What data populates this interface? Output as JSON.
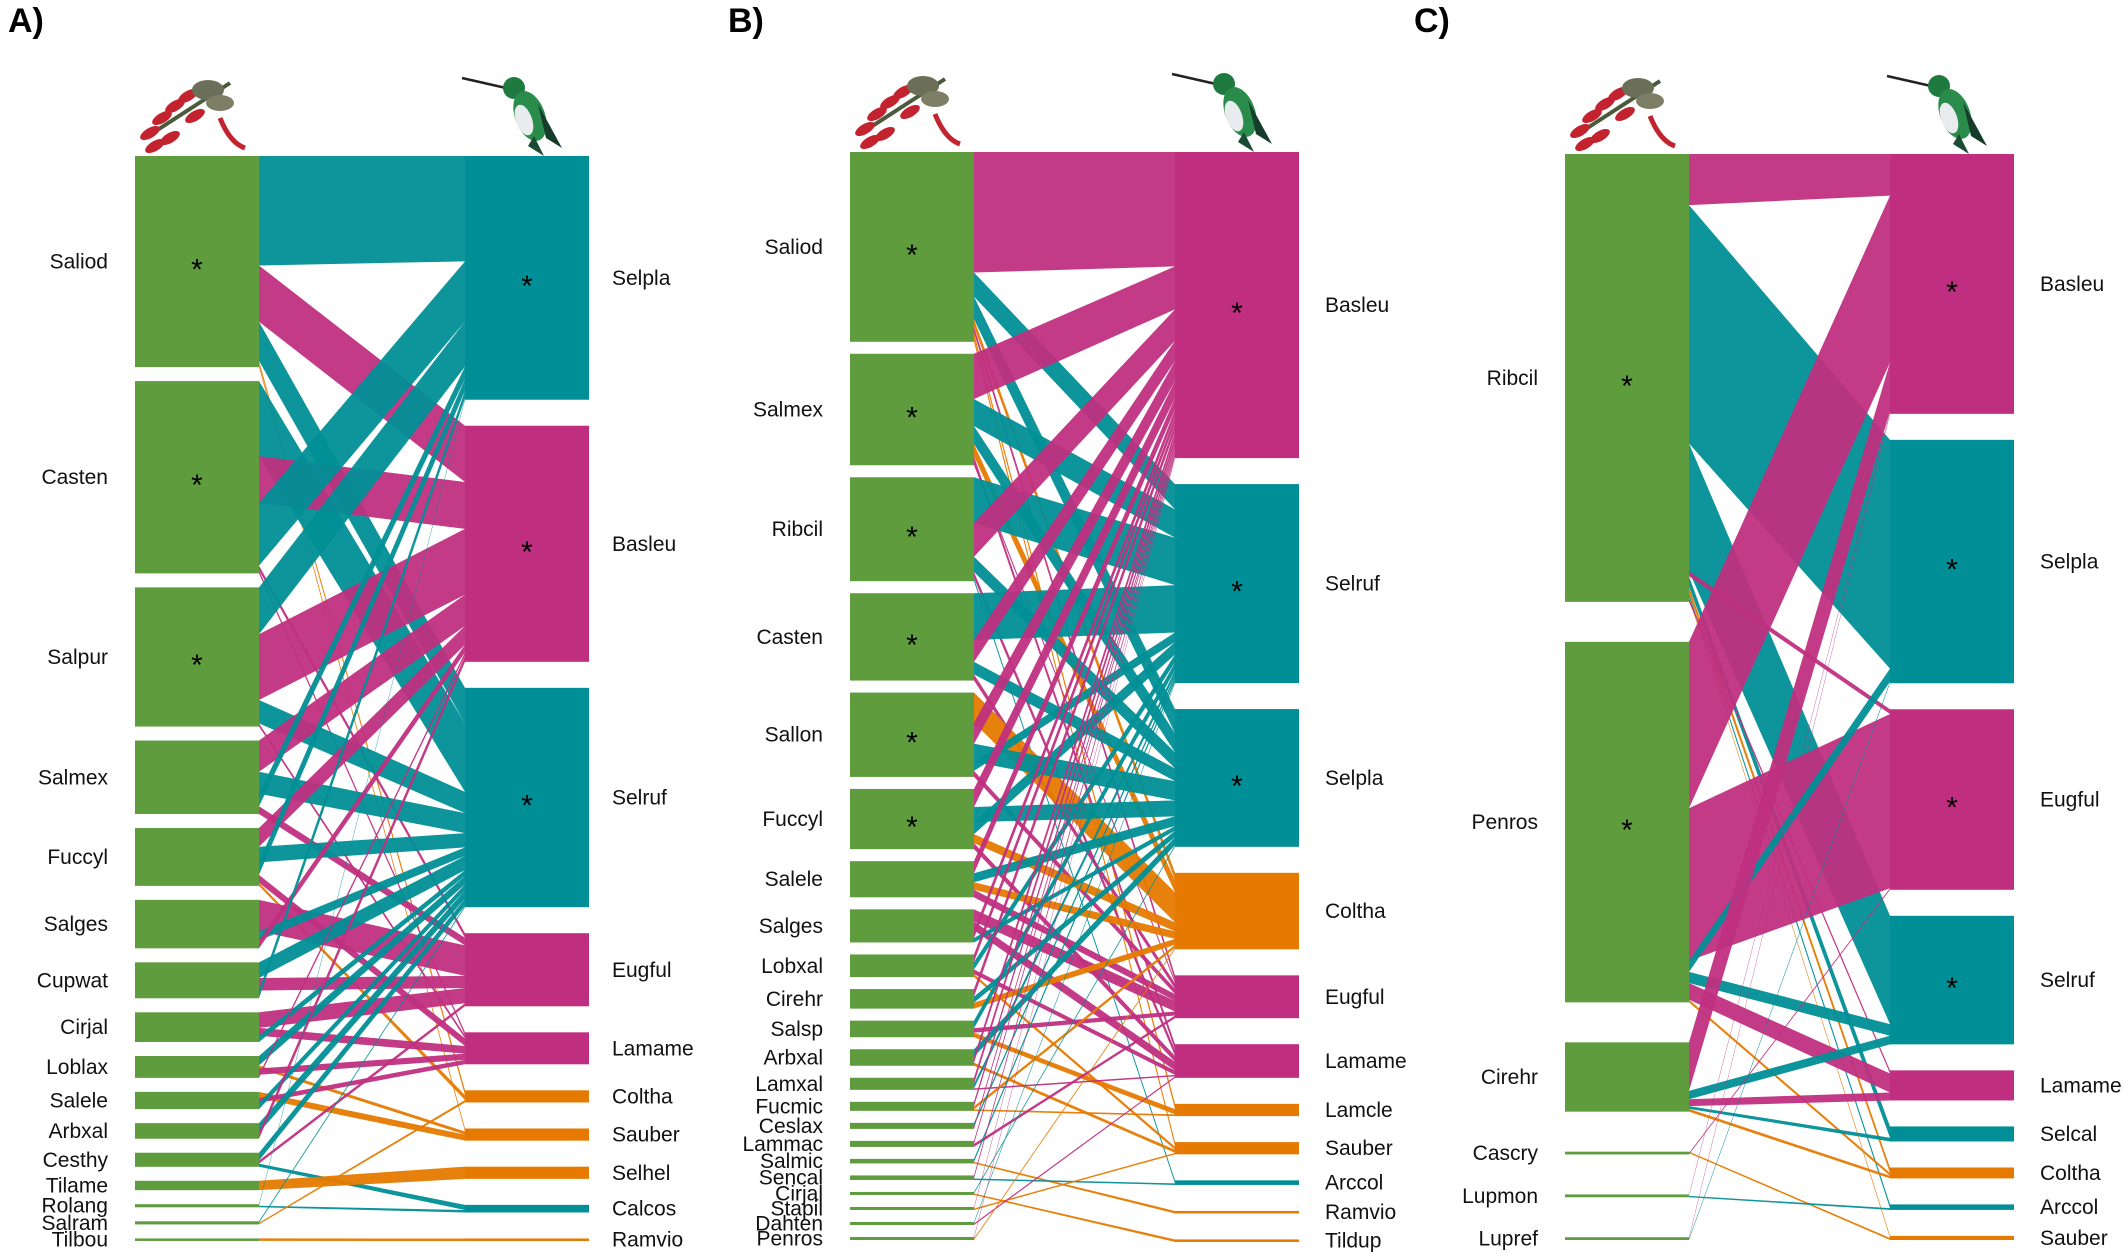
{
  "colors": {
    "plant": "#5f9c3d",
    "teal": "#008f96",
    "magenta": "#c02f7f",
    "orange": "#e67a00"
  },
  "icons": {
    "plant": "flower-icon",
    "bird": "hummingbird-icon"
  },
  "chart_data": [
    {
      "type": "bipartite",
      "panel": "A)",
      "plants": [
        {
          "name": "Saliod",
          "w": 135,
          "star": true
        },
        {
          "name": "Casten",
          "w": 123,
          "star": true
        },
        {
          "name": "Salpur",
          "w": 89,
          "star": true
        },
        {
          "name": "Salmex",
          "w": 47,
          "star": false
        },
        {
          "name": "Fuccyl",
          "w": 37,
          "star": false
        },
        {
          "name": "Salges",
          "w": 31,
          "star": false
        },
        {
          "name": "Cupwat",
          "w": 23,
          "star": false
        },
        {
          "name": "Cirjal",
          "w": 19,
          "star": false
        },
        {
          "name": "Loblax",
          "w": 14,
          "star": false
        },
        {
          "name": "Salele",
          "w": 11,
          "star": false
        },
        {
          "name": "Arbxal",
          "w": 10,
          "star": false
        },
        {
          "name": "Cesthy",
          "w": 9,
          "star": false
        },
        {
          "name": "Tilame",
          "w": 6,
          "star": false
        },
        {
          "name": "Rolang",
          "w": 2,
          "star": false
        },
        {
          "name": "Salram",
          "w": 2,
          "star": false
        },
        {
          "name": "Tilbou",
          "w": 1,
          "star": false
        }
      ],
      "birds": [
        {
          "name": "Selpla",
          "w": 160,
          "star": true,
          "color": "teal"
        },
        {
          "name": "Basleu",
          "w": 155,
          "star": true,
          "color": "magenta"
        },
        {
          "name": "Selruf",
          "w": 144,
          "star": true,
          "color": "teal"
        },
        {
          "name": "Eugful",
          "w": 48,
          "star": false,
          "color": "magenta"
        },
        {
          "name": "Lamame",
          "w": 21,
          "star": false,
          "color": "magenta"
        },
        {
          "name": "Coltha",
          "w": 8,
          "star": false,
          "color": "orange"
        },
        {
          "name": "Sauber",
          "w": 8,
          "star": false,
          "color": "orange"
        },
        {
          "name": "Selhel",
          "w": 8,
          "star": false,
          "color": "orange"
        },
        {
          "name": "Calcos",
          "w": 5,
          "star": false,
          "color": "teal"
        },
        {
          "name": "Ramvio",
          "w": 1,
          "star": false,
          "color": "orange"
        }
      ],
      "links": [
        [
          "Saliod",
          "Selpla",
          70
        ],
        [
          "Saliod",
          "Basleu",
          36
        ],
        [
          "Saliod",
          "Selruf",
          25
        ],
        [
          "Saliod",
          "Coltha",
          2
        ],
        [
          "Saliod",
          "Sauber",
          2
        ],
        [
          "Casten",
          "Selruf",
          48
        ],
        [
          "Casten",
          "Basleu",
          30
        ],
        [
          "Casten",
          "Selpla",
          40
        ],
        [
          "Casten",
          "Eugful",
          3
        ],
        [
          "Casten",
          "Lamame",
          2
        ],
        [
          "Salpur",
          "Selpla",
          30
        ],
        [
          "Salpur",
          "Basleu",
          42
        ],
        [
          "Salpur",
          "Selruf",
          15
        ],
        [
          "Salpur",
          "Lamame",
          2
        ],
        [
          "Salmex",
          "Basleu",
          20
        ],
        [
          "Salmex",
          "Selruf",
          14
        ],
        [
          "Salmex",
          "Selpla",
          8
        ],
        [
          "Salmex",
          "Eugful",
          5
        ],
        [
          "Fuccyl",
          "Basleu",
          12
        ],
        [
          "Fuccyl",
          "Selruf",
          10
        ],
        [
          "Fuccyl",
          "Selpla",
          8
        ],
        [
          "Fuccyl",
          "Lamame",
          5
        ],
        [
          "Fuccyl",
          "Coltha",
          2
        ],
        [
          "Salges",
          "Eugful",
          20
        ],
        [
          "Salges",
          "Selruf",
          6
        ],
        [
          "Salges",
          "Basleu",
          5
        ],
        [
          "Cupwat",
          "Selruf",
          10
        ],
        [
          "Cupwat",
          "Eugful",
          8
        ],
        [
          "Cupwat",
          "Selpla",
          5
        ],
        [
          "Cirjal",
          "Eugful",
          10
        ],
        [
          "Cirjal",
          "Lamame",
          5
        ],
        [
          "Cirjal",
          "Selruf",
          4
        ],
        [
          "Loblax",
          "Selruf",
          6
        ],
        [
          "Loblax",
          "Sauber",
          2
        ],
        [
          "Loblax",
          "Lamame",
          4
        ],
        [
          "Loblax",
          "Basleu",
          2
        ],
        [
          "Salele",
          "Sauber",
          4
        ],
        [
          "Salele",
          "Lamame",
          3
        ],
        [
          "Salele",
          "Selruf",
          4
        ],
        [
          "Arbxal",
          "Selruf",
          6
        ],
        [
          "Arbxal",
          "Basleu",
          4
        ],
        [
          "Cesthy",
          "Selruf",
          5
        ],
        [
          "Cesthy",
          "Eugful",
          2
        ],
        [
          "Cesthy",
          "Calcos",
          2
        ],
        [
          "Tilame",
          "Selhel",
          6
        ],
        [
          "Rolang",
          "Selpla",
          1
        ],
        [
          "Rolang",
          "Calcos",
          1
        ],
        [
          "Salram",
          "Selruf",
          1
        ],
        [
          "Salram",
          "Coltha",
          1
        ],
        [
          "Tilbou",
          "Ramvio",
          1
        ]
      ]
    },
    {
      "type": "bipartite",
      "panel": "B)",
      "plants": [
        {
          "name": "Saliod",
          "w": 126,
          "star": true
        },
        {
          "name": "Salmex",
          "w": 74,
          "star": true
        },
        {
          "name": "Ribcil",
          "w": 69,
          "star": true
        },
        {
          "name": "Casten",
          "w": 58,
          "star": true
        },
        {
          "name": "Sallon",
          "w": 56,
          "star": true
        },
        {
          "name": "Fuccyl",
          "w": 40,
          "star": true
        },
        {
          "name": "Salele",
          "w": 24,
          "star": false
        },
        {
          "name": "Salges",
          "w": 22,
          "star": false
        },
        {
          "name": "Lobxal",
          "w": 15,
          "star": false
        },
        {
          "name": "Cirehr",
          "w": 13,
          "star": false
        },
        {
          "name": "Salsp",
          "w": 11,
          "star": false
        },
        {
          "name": "Arbxal",
          "w": 11,
          "star": false
        },
        {
          "name": "Lamxal",
          "w": 8,
          "star": false
        },
        {
          "name": "Fucmic",
          "w": 6,
          "star": false
        },
        {
          "name": "Ceslax",
          "w": 4,
          "star": false
        },
        {
          "name": "Lammac",
          "w": 4,
          "star": false
        },
        {
          "name": "Salmic",
          "w": 3,
          "star": false
        },
        {
          "name": "Sencal",
          "w": 3,
          "star": false
        },
        {
          "name": "Cirjal",
          "w": 2,
          "star": false
        },
        {
          "name": "Stapil",
          "w": 2,
          "star": false
        },
        {
          "name": "Dahten",
          "w": 2,
          "star": false
        },
        {
          "name": "Penros",
          "w": 2,
          "star": false
        }
      ],
      "birds": [
        {
          "name": "Basleu",
          "w": 200,
          "star": true,
          "color": "magenta"
        },
        {
          "name": "Selruf",
          "w": 130,
          "star": true,
          "color": "teal"
        },
        {
          "name": "Selpla",
          "w": 90,
          "star": true,
          "color": "teal"
        },
        {
          "name": "Coltha",
          "w": 50,
          "star": false,
          "color": "orange"
        },
        {
          "name": "Eugful",
          "w": 28,
          "star": false,
          "color": "magenta"
        },
        {
          "name": "Lamame",
          "w": 22,
          "star": false,
          "color": "magenta"
        },
        {
          "name": "Lamcle",
          "w": 8,
          "star": false,
          "color": "orange"
        },
        {
          "name": "Sauber",
          "w": 8,
          "star": false,
          "color": "orange"
        },
        {
          "name": "Arccol",
          "w": 3,
          "star": false,
          "color": "teal"
        },
        {
          "name": "Ramvio",
          "w": 1,
          "star": false,
          "color": "orange"
        },
        {
          "name": "Tildup",
          "w": 1,
          "star": false,
          "color": "orange"
        }
      ],
      "links": [
        [
          "Saliod",
          "Basleu",
          80
        ],
        [
          "Saliod",
          "Selruf",
          16
        ],
        [
          "Saliod",
          "Selpla",
          15
        ],
        [
          "Saliod",
          "Coltha",
          5
        ],
        [
          "Saliod",
          "Eugful",
          4
        ],
        [
          "Saliod",
          "Lamcle",
          3
        ],
        [
          "Saliod",
          "Sauber",
          3
        ],
        [
          "Salmex",
          "Basleu",
          30
        ],
        [
          "Salmex",
          "Selruf",
          18
        ],
        [
          "Salmex",
          "Selpla",
          12
        ],
        [
          "Salmex",
          "Coltha",
          8
        ],
        [
          "Salmex",
          "Lamame",
          4
        ],
        [
          "Salmex",
          "Eugful",
          2
        ],
        [
          "Ribcil",
          "Selruf",
          30
        ],
        [
          "Ribcil",
          "Basleu",
          22
        ],
        [
          "Ribcil",
          "Selpla",
          10
        ],
        [
          "Ribcil",
          "Lamame",
          4
        ],
        [
          "Ribcil",
          "Arccol",
          2
        ],
        [
          "Casten",
          "Selruf",
          30
        ],
        [
          "Casten",
          "Basleu",
          14
        ],
        [
          "Casten",
          "Selpla",
          8
        ],
        [
          "Casten",
          "Eugful",
          4
        ],
        [
          "Sallon",
          "Coltha",
          20
        ],
        [
          "Sallon",
          "Basleu",
          14
        ],
        [
          "Sallon",
          "Selpla",
          12
        ],
        [
          "Sallon",
          "Selruf",
          6
        ],
        [
          "Sallon",
          "Eugful",
          4
        ],
        [
          "Fuccyl",
          "Basleu",
          12
        ],
        [
          "Fuccyl",
          "Selpla",
          10
        ],
        [
          "Fuccyl",
          "Selruf",
          8
        ],
        [
          "Fuccyl",
          "Coltha",
          6
        ],
        [
          "Fuccyl",
          "Lamame",
          4
        ],
        [
          "Salele",
          "Basleu",
          8
        ],
        [
          "Salele",
          "Selpla",
          6
        ],
        [
          "Salele",
          "Coltha",
          5
        ],
        [
          "Salele",
          "Eugful",
          5
        ],
        [
          "Salges",
          "Eugful",
          8
        ],
        [
          "Salges",
          "Lamame",
          6
        ],
        [
          "Salges",
          "Basleu",
          5
        ],
        [
          "Salges",
          "Selpla",
          3
        ],
        [
          "Lobxal",
          "Basleu",
          5
        ],
        [
          "Lobxal",
          "Selruf",
          5
        ],
        [
          "Lobxal",
          "Lamame",
          3
        ],
        [
          "Lobxal",
          "Sauber",
          2
        ],
        [
          "Cirehr",
          "Basleu",
          5
        ],
        [
          "Cirehr",
          "Selpla",
          4
        ],
        [
          "Cirehr",
          "Coltha",
          4
        ],
        [
          "Salsp",
          "Selruf",
          5
        ],
        [
          "Salsp",
          "Eugful",
          3
        ],
        [
          "Salsp",
          "Lamcle",
          3
        ],
        [
          "Arbxal",
          "Selpla",
          5
        ],
        [
          "Arbxal",
          "Basleu",
          4
        ],
        [
          "Arbxal",
          "Sauber",
          2
        ],
        [
          "Lamxal",
          "Basleu",
          4
        ],
        [
          "Lamxal",
          "Selruf",
          3
        ],
        [
          "Lamxal",
          "Lamame",
          1
        ],
        [
          "Fucmic",
          "Basleu",
          3
        ],
        [
          "Fucmic",
          "Coltha",
          2
        ],
        [
          "Fucmic",
          "Lamcle",
          1
        ],
        [
          "Ceslax",
          "Selruf",
          2
        ],
        [
          "Ceslax",
          "Basleu",
          2
        ],
        [
          "Lammac",
          "Basleu",
          2
        ],
        [
          "Lammac",
          "Eugful",
          2
        ],
        [
          "Salmic",
          "Selruf",
          2
        ],
        [
          "Salmic",
          "Ramvio",
          1
        ],
        [
          "Sencal",
          "Basleu",
          2
        ],
        [
          "Sencal",
          "Arccol",
          1
        ],
        [
          "Cirjal",
          "Selpla",
          1
        ],
        [
          "Cirjal",
          "Tildup",
          1
        ],
        [
          "Stapil",
          "Basleu",
          1
        ],
        [
          "Stapil",
          "Sauber",
          1
        ],
        [
          "Dahten",
          "Selruf",
          1
        ],
        [
          "Dahten",
          "Lamame",
          1
        ],
        [
          "Penros",
          "Basleu",
          1
        ],
        [
          "Penros",
          "Coltha",
          1
        ]
      ]
    },
    {
      "type": "bipartite",
      "panel": "C)",
      "plants": [
        {
          "name": "Ribcil",
          "w": 323,
          "star": true
        },
        {
          "name": "Penros",
          "w": 260,
          "star": true
        },
        {
          "name": "Cirehr",
          "w": 50,
          "star": false
        },
        {
          "name": "Cascry",
          "w": 2,
          "star": false
        },
        {
          "name": "Lupmon",
          "w": 2,
          "star": false
        },
        {
          "name": "Lupref",
          "w": 2,
          "star": false
        }
      ],
      "birds": [
        {
          "name": "Basleu",
          "w": 190,
          "star": true,
          "color": "magenta"
        },
        {
          "name": "Selpla",
          "w": 178,
          "star": true,
          "color": "teal"
        },
        {
          "name": "Eugful",
          "w": 132,
          "star": true,
          "color": "magenta"
        },
        {
          "name": "Selruf",
          "w": 94,
          "star": true,
          "color": "teal"
        },
        {
          "name": "Lamame",
          "w": 22,
          "star": false,
          "color": "magenta"
        },
        {
          "name": "Selcal",
          "w": 11,
          "star": false,
          "color": "teal"
        },
        {
          "name": "Coltha",
          "w": 8,
          "star": false,
          "color": "orange"
        },
        {
          "name": "Arccol",
          "w": 4,
          "star": false,
          "color": "teal"
        },
        {
          "name": "Sauber",
          "w": 3,
          "star": false,
          "color": "orange"
        }
      ],
      "links": [
        [
          "Ribcil",
          "Basleu",
          30
        ],
        [
          "Ribcil",
          "Selpla",
          140
        ],
        [
          "Ribcil",
          "Selruf",
          75
        ],
        [
          "Ribcil",
          "Eugful",
          3
        ],
        [
          "Ribcil",
          "Selcal",
          6
        ],
        [
          "Ribcil",
          "Coltha",
          4
        ],
        [
          "Ribcil",
          "Arccol",
          2
        ],
        [
          "Ribcil",
          "Sauber",
          1
        ],
        [
          "Ribcil",
          "Lamame",
          2
        ],
        [
          "Penros",
          "Basleu",
          120
        ],
        [
          "Penros",
          "Eugful",
          110
        ],
        [
          "Penros",
          "Selpla",
          8
        ],
        [
          "Penros",
          "Selruf",
          8
        ],
        [
          "Penros",
          "Lamame",
          12
        ],
        [
          "Penros",
          "Coltha",
          2
        ],
        [
          "Cirehr",
          "Basleu",
          35
        ],
        [
          "Cirehr",
          "Selruf",
          6
        ],
        [
          "Cirehr",
          "Lamame",
          5
        ],
        [
          "Cirehr",
          "Selcal",
          2
        ],
        [
          "Cirehr",
          "Coltha",
          2
        ],
        [
          "Cascry",
          "Sauber",
          1
        ],
        [
          "Cascry",
          "Eugful",
          1
        ],
        [
          "Lupmon",
          "Basleu",
          1
        ],
        [
          "Lupmon",
          "Arccol",
          1
        ],
        [
          "Lupref",
          "Basleu",
          1
        ],
        [
          "Lupref",
          "Selpla",
          1
        ]
      ]
    }
  ]
}
